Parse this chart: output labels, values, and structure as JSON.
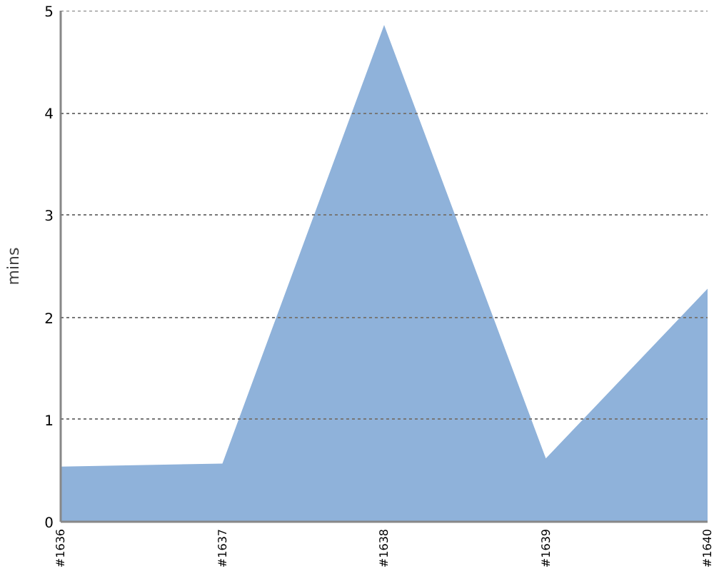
{
  "chart_data": {
    "type": "area",
    "ylabel": "mins",
    "categories": [
      "#1636",
      "#1637",
      "#1638",
      "#1639",
      "#1640"
    ],
    "series": [
      {
        "color": "#8fb2da",
        "values": [
          0.54,
          0.57,
          4.86,
          0.62,
          2.28
        ]
      }
    ],
    "ylim": [
      0,
      5
    ],
    "yticks": [
      0,
      1,
      2,
      3,
      4,
      5
    ],
    "grid": "y"
  }
}
